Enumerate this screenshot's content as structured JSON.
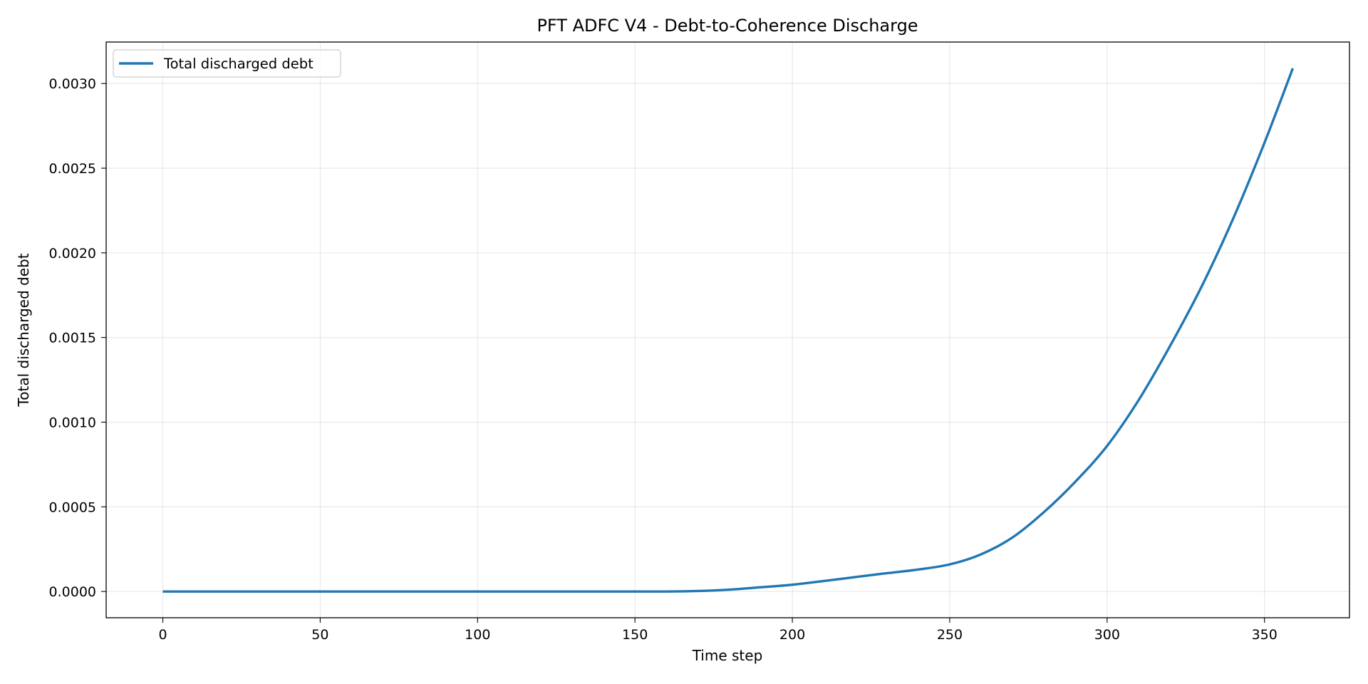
{
  "chart_data": {
    "type": "line",
    "title": "PFT ADFC V4 - Debt-to-Coherence Discharge",
    "xlabel": "Time step",
    "ylabel": "Total discharged debt",
    "xlim": [
      -18,
      377
    ],
    "ylim": [
      -0.000155,
      0.003245
    ],
    "xticks": [
      0,
      50,
      100,
      150,
      200,
      250,
      300,
      350
    ],
    "xtick_labels": [
      "0",
      "50",
      "100",
      "150",
      "200",
      "250",
      "300",
      "350"
    ],
    "yticks": [
      0,
      0.0005,
      0.001,
      0.0015,
      0.002,
      0.0025,
      0.003
    ],
    "ytick_labels": [
      "0.0000",
      "0.0005",
      "0.0010",
      "0.0015",
      "0.0020",
      "0.0025",
      "0.0030"
    ],
    "grid": true,
    "legend_position": "top-left",
    "series": [
      {
        "name": "Total discharged debt",
        "color": "#1f77b4",
        "x": [
          0,
          20,
          40,
          60,
          80,
          100,
          120,
          140,
          160,
          170,
          180,
          190,
          200,
          210,
          220,
          230,
          240,
          250,
          260,
          270,
          280,
          290,
          300,
          310,
          320,
          330,
          340,
          350,
          359
        ],
        "y": [
          0,
          0,
          0,
          0,
          0,
          0,
          0,
          0,
          0,
          3e-06,
          1.1e-05,
          2.5e-05,
          4e-05,
          6.2e-05,
          8.5e-05,
          0.000108,
          0.00013,
          0.00016,
          0.00022,
          0.00032,
          0.00047,
          0.00065,
          0.00086,
          0.00113,
          0.00145,
          0.0018,
          0.0022,
          0.00265,
          0.00309
        ]
      }
    ]
  }
}
